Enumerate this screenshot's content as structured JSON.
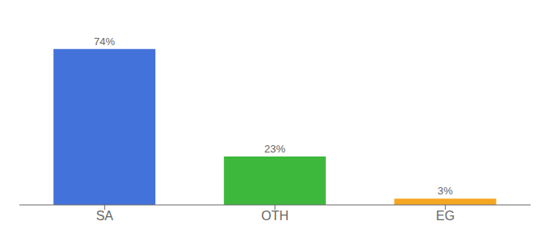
{
  "chart_data": {
    "type": "bar",
    "categories": [
      "SA",
      "OTH",
      "EG"
    ],
    "values": [
      74,
      23,
      3
    ],
    "value_labels": [
      "74%",
      "23%",
      "3%"
    ],
    "colors": [
      "#4472db",
      "#3db83d",
      "#f5a623"
    ],
    "ylim": [
      0,
      85
    ],
    "data_labels": true,
    "tick_labels": "x",
    "grid": false
  }
}
